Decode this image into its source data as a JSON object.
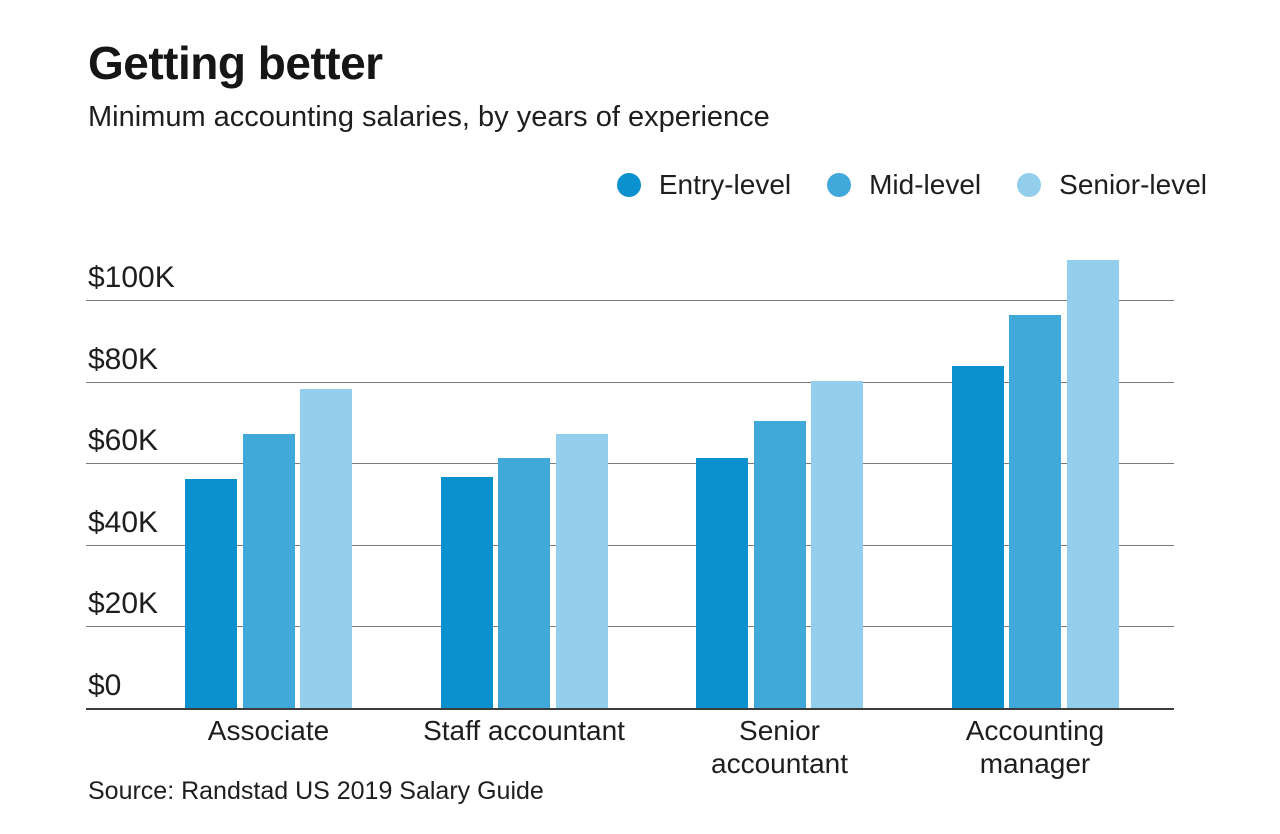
{
  "header": {
    "title": "Getting better",
    "subtitle": "Minimum accounting salaries, by years of experience"
  },
  "source": "Source: Randstad US 2019 Salary Guide",
  "colors": {
    "background": "#ffffff",
    "text": "#1e1e1e",
    "gridline": "#7a7a7a",
    "axis_line": "#3d3d3d",
    "entry_level": "#0a91ce",
    "mid_level": "#41a8da",
    "senior_level": "#93cfec"
  },
  "chart_data": {
    "type": "bar",
    "title": "Getting better",
    "subtitle": "Minimum accounting salaries, by years of experience",
    "categories": [
      "Associate",
      "Staff accountant",
      "Senior accountant",
      "Accounting manager"
    ],
    "category_lines": [
      [
        "Associate"
      ],
      [
        "Staff accountant"
      ],
      [
        "Senior",
        "accountant"
      ],
      [
        "Accounting",
        "manager"
      ]
    ],
    "series": [
      {
        "name": "Entry-level",
        "color": "#0a91ce",
        "values": [
          56.5,
          57.0,
          61.5,
          84.0
        ]
      },
      {
        "name": "Mid-level",
        "color": "#41a8da",
        "values": [
          67.5,
          61.5,
          70.5,
          96.5
        ]
      },
      {
        "name": "Senior-level",
        "color": "#93cfec",
        "values": [
          78.5,
          67.5,
          80.5,
          110.0
        ]
      }
    ],
    "unit": "USD thousands",
    "ylabel": "",
    "xlabel": "",
    "yticks": [
      {
        "value": 0,
        "label": "$0"
      },
      {
        "value": 20,
        "label": "$20K"
      },
      {
        "value": 40,
        "label": "$40K"
      },
      {
        "value": 60,
        "label": "$60K"
      },
      {
        "value": 80,
        "label": "$80K"
      },
      {
        "value": 100,
        "label": "$100K"
      }
    ],
    "ylim": [
      0,
      111.3
    ],
    "grid": "horizontal",
    "legend_position": "top-right"
  }
}
